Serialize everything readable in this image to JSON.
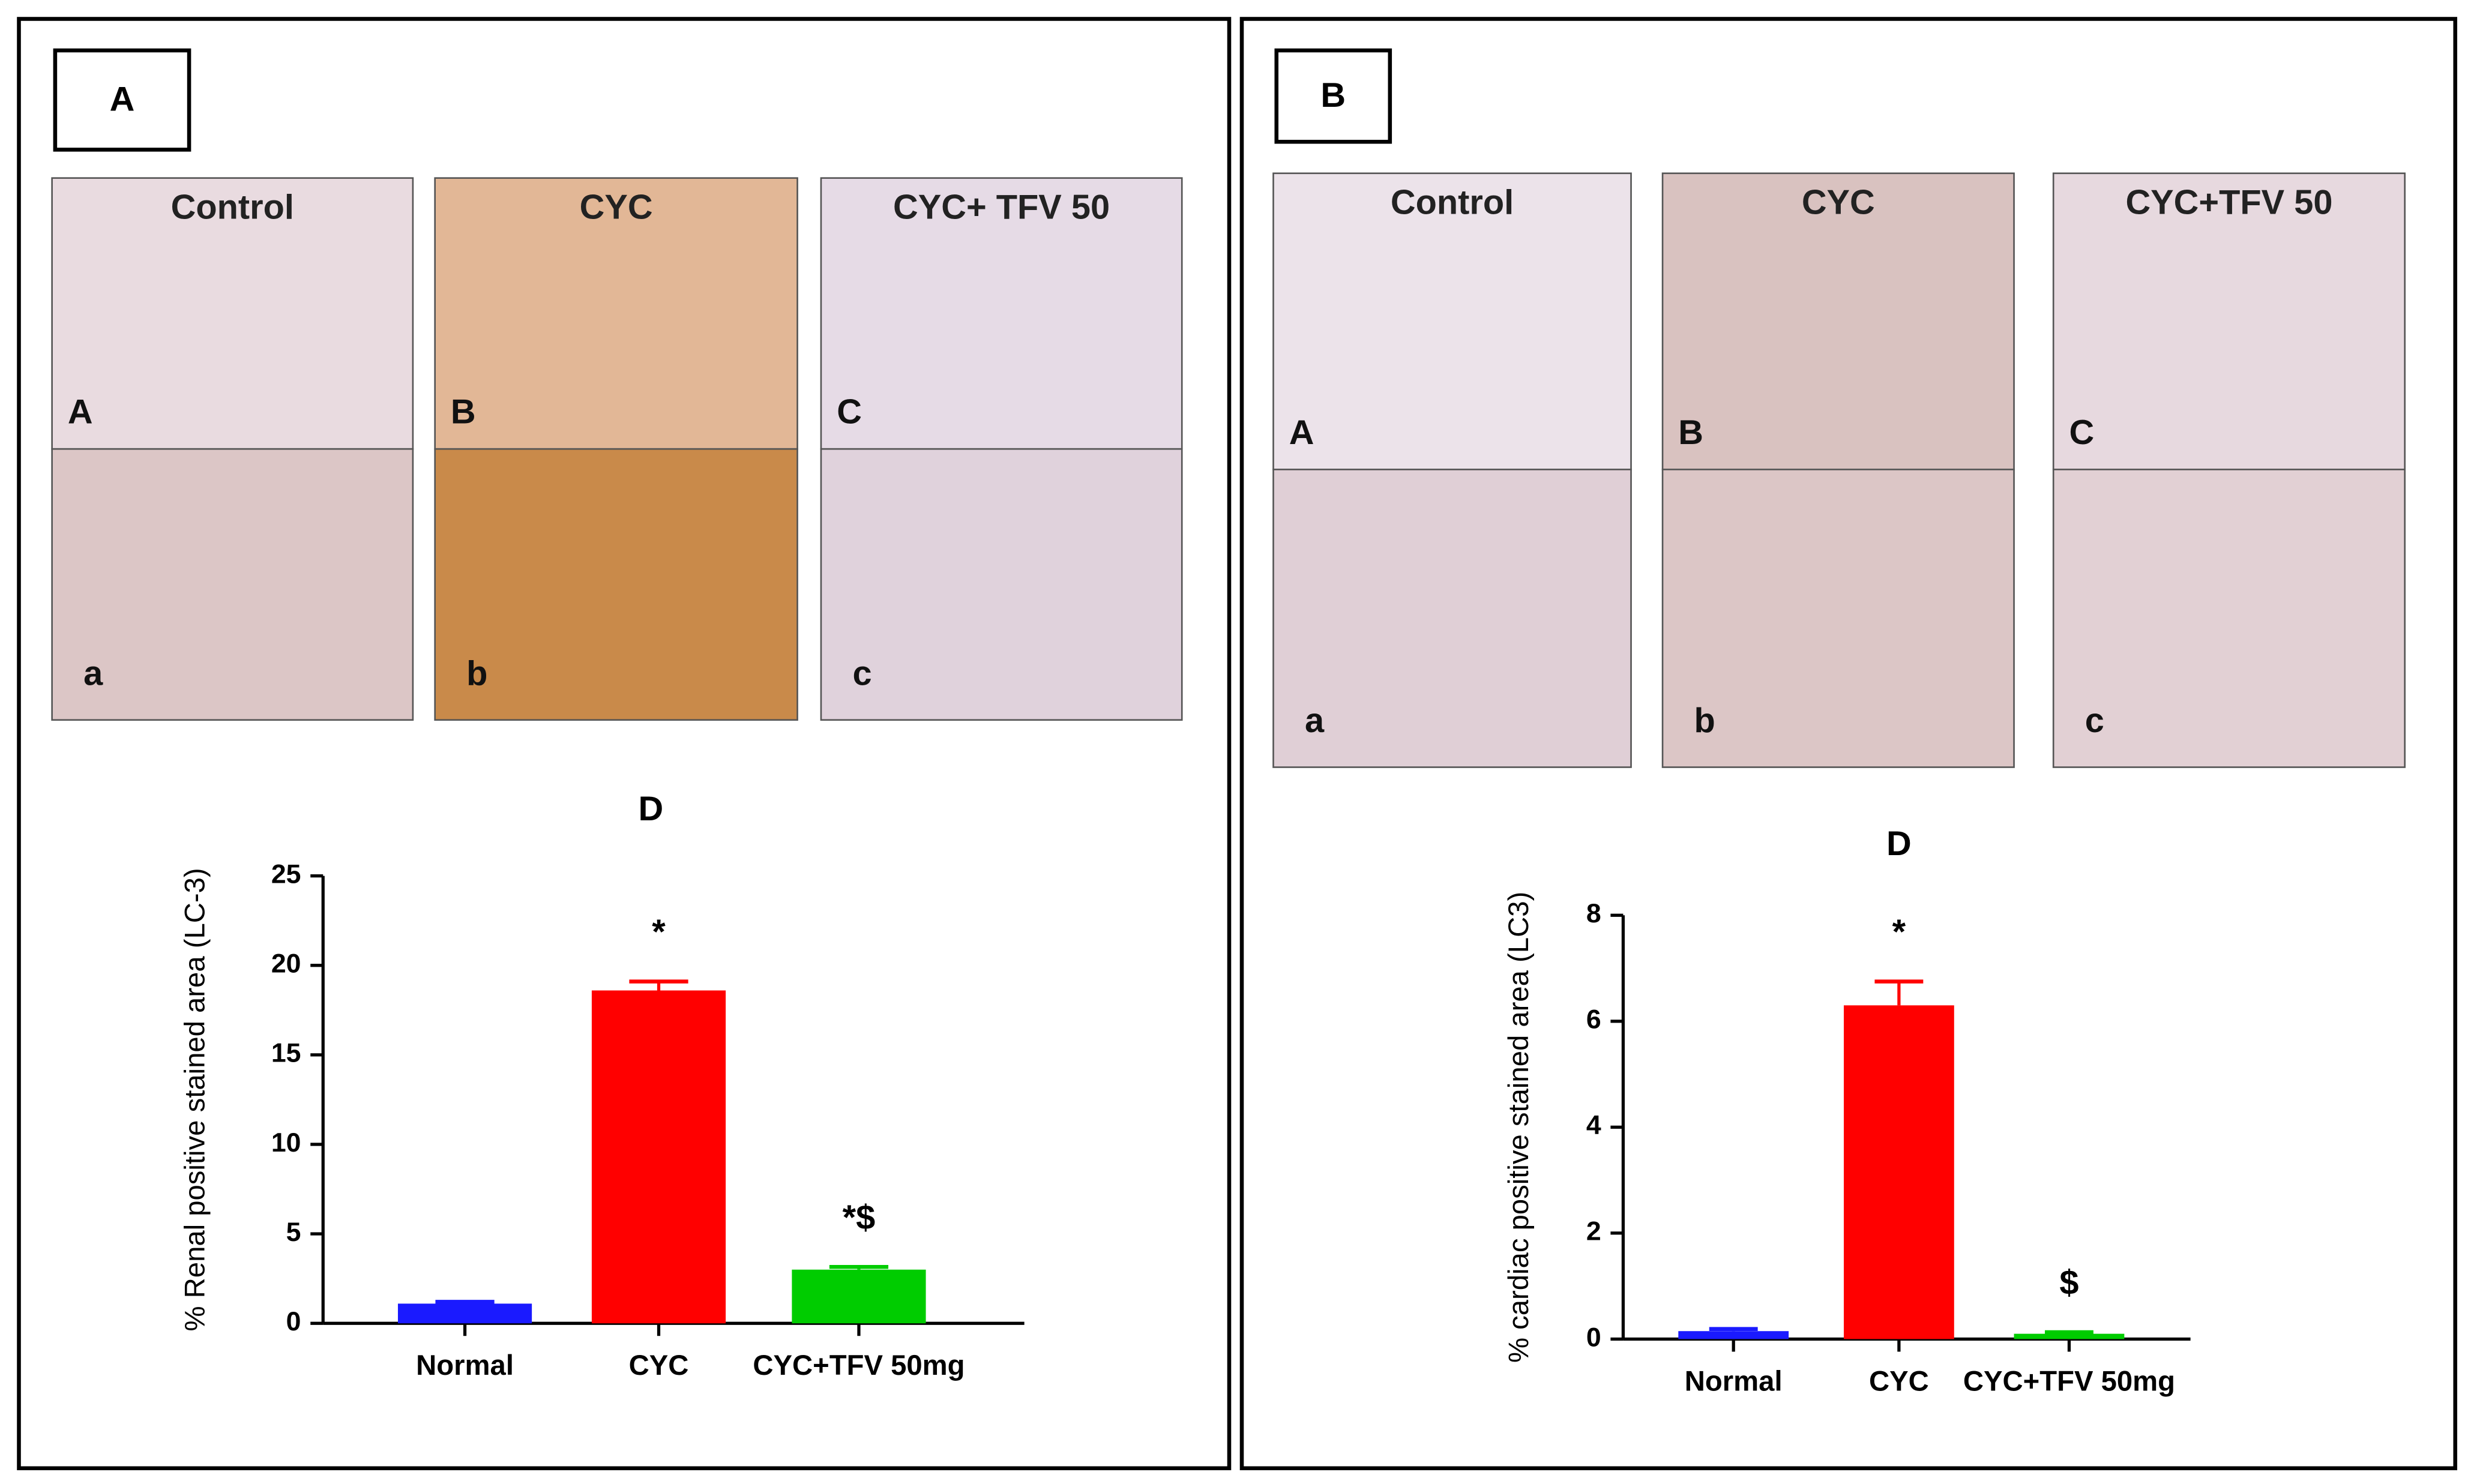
{
  "panels": [
    {
      "label": "A",
      "images": [
        {
          "title": "Control",
          "top_label": "A",
          "bottom_label": "a"
        },
        {
          "title": "CYC",
          "top_label": "B",
          "bottom_label": "b"
        },
        {
          "title": "CYC+ TFV 50",
          "top_label": "C",
          "bottom_label": "c"
        }
      ]
    },
    {
      "label": "B",
      "images": [
        {
          "title": "Control",
          "top_label": "A",
          "bottom_label": "a"
        },
        {
          "title": "CYC",
          "top_label": "B",
          "bottom_label": "b"
        },
        {
          "title": "CYC+TFV 50",
          "top_label": "C",
          "bottom_label": "c"
        }
      ]
    }
  ],
  "chart_data": [
    {
      "type": "bar",
      "title": "D",
      "y_label": "% Renal positive stained area (LC-3)",
      "categories": [
        "Normal",
        "CYC",
        "CYC+TFV 50mg"
      ],
      "values": [
        1.1,
        18.6,
        3.0
      ],
      "errors": [
        0.1,
        0.5,
        0.15
      ],
      "colors": [
        "#1a1aff",
        "#ff0000",
        "#00cc00"
      ],
      "annotations": [
        null,
        "*",
        "*$"
      ],
      "ylim": [
        0,
        25
      ],
      "yticks": [
        0,
        5,
        10,
        15,
        20,
        25
      ],
      "grid": false
    },
    {
      "type": "bar",
      "title": "D",
      "y_label": "% cardiac positive stained area (LC3)",
      "categories": [
        "Normal",
        "CYC",
        "CYC+TFV 50mg"
      ],
      "values": [
        0.15,
        6.3,
        0.1
      ],
      "errors": [
        0.04,
        0.45,
        0.03
      ],
      "colors": [
        "#1a1aff",
        "#ff0000",
        "#00cc00"
      ],
      "annotations": [
        null,
        "*",
        "$"
      ],
      "ylim": [
        0,
        8
      ],
      "yticks": [
        0,
        2,
        4,
        6,
        8
      ],
      "grid": false
    }
  ]
}
